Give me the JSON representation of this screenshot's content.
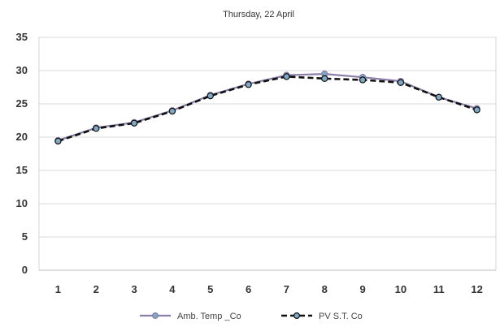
{
  "chart_data": {
    "type": "line",
    "title": "Thursday, 22 April",
    "xlabel": "",
    "ylabel": "",
    "x": [
      "1",
      "2",
      "3",
      "4",
      "5",
      "6",
      "7",
      "8",
      "9",
      "10",
      "11",
      "12"
    ],
    "ylim": [
      0,
      35
    ],
    "yticks": [
      0,
      5,
      10,
      15,
      20,
      25,
      30,
      35
    ],
    "grid": true,
    "legend_position": "bottom",
    "series": [
      {
        "name": "Amb. Temp _Co",
        "color": "#8a7fa8",
        "marker_color": "#7fa8c4",
        "style": "solid",
        "values": [
          19.5,
          21.4,
          22.2,
          24.0,
          26.3,
          28.0,
          29.3,
          29.5,
          29.0,
          28.4,
          26.0,
          24.3
        ]
      },
      {
        "name": "PV S.T. Co",
        "color": "#111111",
        "marker_color": "#7fa8c4",
        "style": "dashed",
        "values": [
          19.4,
          21.3,
          22.1,
          23.9,
          26.2,
          27.9,
          29.1,
          28.8,
          28.6,
          28.2,
          26.0,
          24.1
        ]
      }
    ]
  }
}
